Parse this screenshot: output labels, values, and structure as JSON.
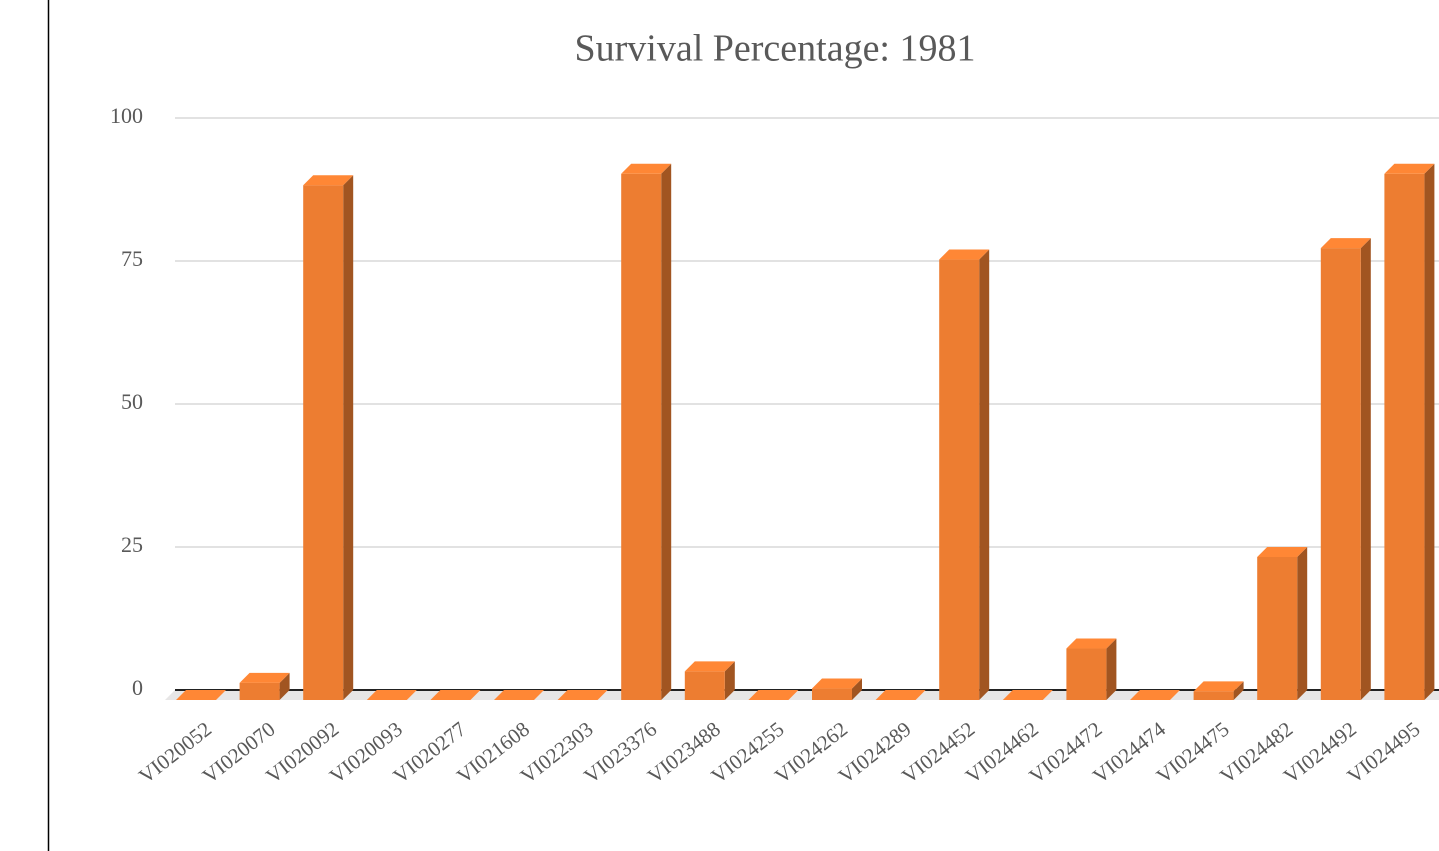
{
  "chart_data": {
    "type": "bar",
    "title": "Survival Percentage: 1981",
    "categories": [
      "VI020052",
      "VI020070",
      "VI020092",
      "VI020093",
      "VI020277",
      "VI021608",
      "VI022303",
      "VI023376",
      "VI023488",
      "VI024255",
      "VI024262",
      "VI024289",
      "VI024452",
      "VI024462",
      "VI024472",
      "VI024474",
      "VI024475",
      "VI024482",
      "VI024492",
      "VI024495"
    ],
    "values": [
      0,
      3,
      90,
      0,
      0,
      0,
      0,
      92,
      5,
      0,
      2,
      0,
      77,
      0,
      9,
      0,
      1.5,
      25,
      79,
      92
    ],
    "color": "#ed7d31",
    "ylim": [
      0,
      100
    ],
    "yticks": [
      0,
      25,
      50,
      75,
      100
    ],
    "grid": true
  }
}
